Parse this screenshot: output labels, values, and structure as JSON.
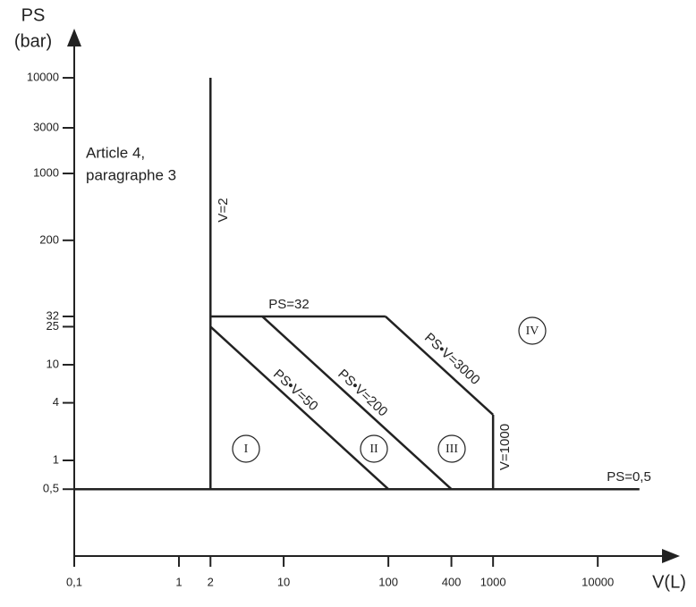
{
  "chart_data": {
    "type": "line",
    "log_x": true,
    "log_y": true,
    "color": "#222222",
    "y_label": [
      "PS",
      "(bar)"
    ],
    "x_label": "V(L)",
    "annotation": [
      "Article 4,",
      "paragraphe 3"
    ],
    "regions": [
      "I",
      "II",
      "III",
      "IV"
    ],
    "xlim": [
      0.1,
      50000
    ],
    "ylim": [
      0.1,
      30000
    ],
    "xticks": [
      {
        "value": 0.1,
        "label": "0,1"
      },
      1,
      2,
      10,
      100,
      400,
      1000,
      10000
    ],
    "yticks": [
      {
        "value": 0.5,
        "label": "0,5"
      },
      1,
      4,
      10,
      25,
      32,
      200,
      1000,
      3000,
      10000
    ],
    "series": [
      {
        "name": "V=2",
        "x": [
          2,
          2
        ],
        "values": [
          0.5,
          10000
        ]
      },
      {
        "name": "PS=32",
        "x": [
          2,
          93.75
        ],
        "values": [
          32,
          32
        ]
      },
      {
        "name": "PS•V=50",
        "x": [
          2,
          100
        ],
        "values": [
          25,
          0.5
        ]
      },
      {
        "name": "PS•V=200",
        "x": [
          6.25,
          400
        ],
        "values": [
          32,
          0.5
        ]
      },
      {
        "name": "PS•V=3000",
        "x": [
          93.75,
          1000
        ],
        "values": [
          32,
          3
        ]
      },
      {
        "name": "V=1000",
        "x": [
          1000,
          1000
        ],
        "values": [
          3,
          0.5
        ]
      },
      {
        "name": "PS=0,5",
        "x": [
          0.1,
          25000
        ],
        "values": [
          0.5,
          0.5
        ]
      }
    ]
  }
}
